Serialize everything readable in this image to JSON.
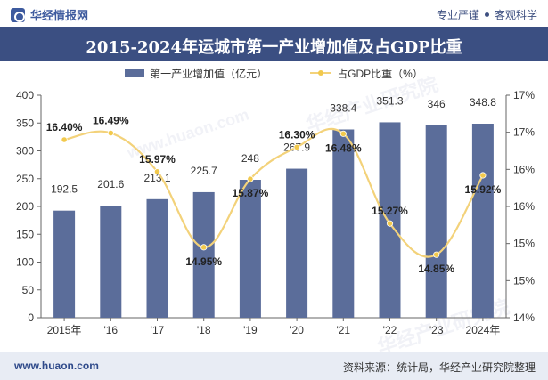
{
  "header": {
    "brand": "华经情报网",
    "tagline_1": "专业严谨",
    "tagline_2": "客观科学"
  },
  "title": "2015-2024年运城市第一产业增加值及占GDP比重",
  "legend": {
    "bar_label": "第一产业增加值（亿元）",
    "line_label": "占GDP比重（%）"
  },
  "footer": {
    "website": "www.huaon.com",
    "source": "资料来源：统计局，华经产业研究院整理"
  },
  "watermark": {
    "text_1": "华经产业研究院",
    "text_2": "www.huaon.com"
  },
  "colors": {
    "bar": "#5b6d9a",
    "line": "#f3d27a",
    "marker": "#f2c94c",
    "title_bg": "#3b4f82"
  },
  "chart_data": {
    "type": "bar",
    "categories": [
      "2015年",
      "'16",
      "'17",
      "'18",
      "'19",
      "'20",
      "'21",
      "'22",
      "'23",
      "2024年"
    ],
    "series": [
      {
        "name": "第一产业增加值（亿元）",
        "type": "bar",
        "axis": "left",
        "values": [
          192.5,
          201.6,
          213.1,
          225.7,
          248,
          267.9,
          338.4,
          351.3,
          346,
          348.8
        ],
        "labels": [
          "192.5",
          "201.6",
          "213.1",
          "225.7",
          "248",
          "267.9",
          "338.4",
          "351.3",
          "346",
          "348.8"
        ]
      },
      {
        "name": "占GDP比重（%）",
        "type": "line",
        "axis": "right",
        "smooth": true,
        "values": [
          16.4,
          16.49,
          15.97,
          14.95,
          15.87,
          16.3,
          16.48,
          15.27,
          14.85,
          15.92
        ],
        "labels": [
          "16.40%",
          "16.49%",
          "15.97%",
          "14.95%",
          "15.87%",
          "16.30%",
          "16.48%",
          "15.27%",
          "14.85%",
          "15.92%"
        ]
      }
    ],
    "y_left": {
      "min": 0,
      "max": 400,
      "ticks": [
        0,
        50,
        100,
        150,
        200,
        250,
        300,
        350,
        400
      ],
      "tick_labels": [
        "0",
        "50",
        "100",
        "150",
        "200",
        "250",
        "300",
        "350",
        "400"
      ]
    },
    "y_right": {
      "min": 14,
      "max": 17,
      "ticks": [
        14,
        14.5,
        15,
        15.5,
        16,
        16.5,
        17
      ],
      "tick_labels": [
        "14%",
        "15%",
        "15%",
        "16%",
        "16%",
        "17%",
        "17%"
      ]
    },
    "grid": false,
    "legend_position": "top"
  }
}
